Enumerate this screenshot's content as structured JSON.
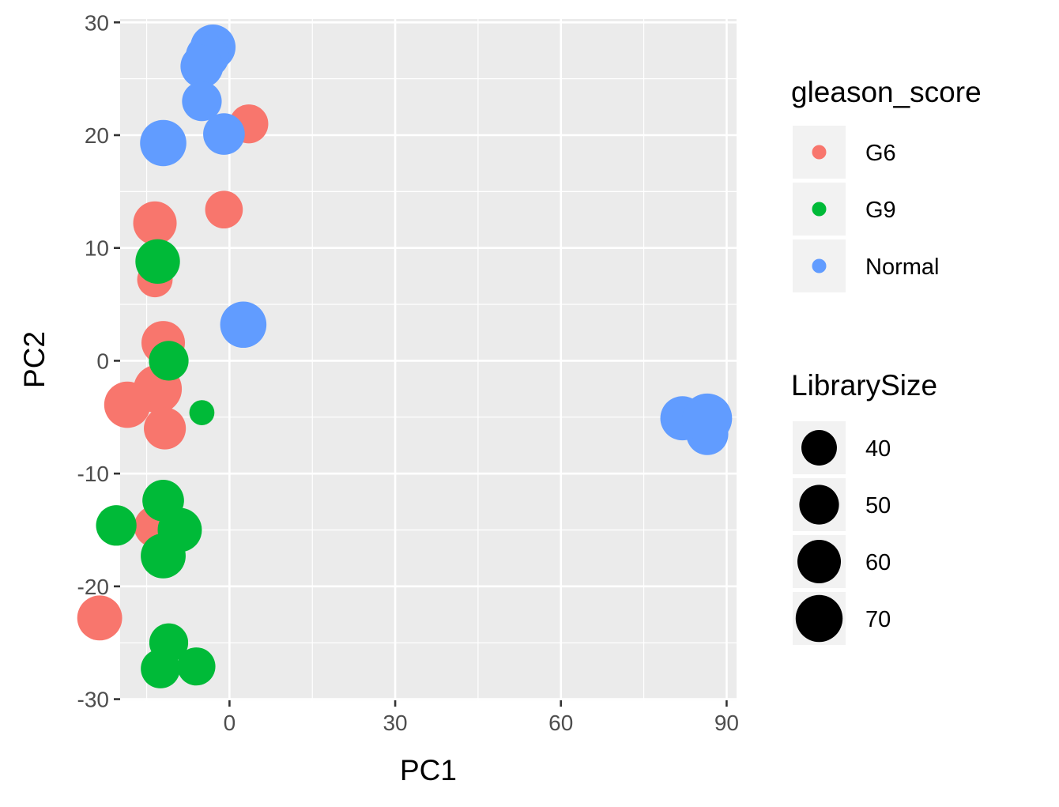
{
  "chart_data": {
    "type": "scatter",
    "title": "",
    "xlabel": "PC1",
    "ylabel": "PC2",
    "xlim": [
      -19.8,
      91.8
    ],
    "ylim": [
      -30.1,
      30.3
    ],
    "xticks": [
      0,
      30,
      60,
      90
    ],
    "yticks": [
      -30,
      -20,
      -10,
      0,
      10,
      20,
      30
    ],
    "grid": true,
    "background": "#ebebeb",
    "color_legend": {
      "title": "gleason_score",
      "entries": [
        {
          "label": "G6",
          "color": "#f8766d"
        },
        {
          "label": "G9",
          "color": "#00ba38"
        },
        {
          "label": "Normal",
          "color": "#619cff"
        }
      ]
    },
    "size_legend": {
      "title": "LibrarySize",
      "entries": [
        {
          "label": "40",
          "value": 40
        },
        {
          "label": "50",
          "value": 50
        },
        {
          "label": "60",
          "value": 60
        },
        {
          "label": "70",
          "value": 70
        }
      ]
    },
    "series": [
      {
        "name": "G6",
        "color": "#f8766d",
        "points": [
          {
            "x": -13.5,
            "y": 12.2,
            "size": 60
          },
          {
            "x": -13.5,
            "y": 7.2,
            "size": 40
          },
          {
            "x": 3.5,
            "y": 21.0,
            "size": 48
          },
          {
            "x": -1.0,
            "y": 13.4,
            "size": 45
          },
          {
            "x": -12.0,
            "y": 1.6,
            "size": 60
          },
          {
            "x": -13.0,
            "y": -2.5,
            "size": 74
          },
          {
            "x": -18.5,
            "y": -3.9,
            "size": 68
          },
          {
            "x": -11.7,
            "y": -6.0,
            "size": 56
          },
          {
            "x": -13.5,
            "y": -14.7,
            "size": 55
          },
          {
            "x": -23.5,
            "y": -22.8,
            "size": 64
          }
        ]
      },
      {
        "name": "G9",
        "color": "#00ba38",
        "points": [
          {
            "x": -13.0,
            "y": 8.8,
            "size": 63
          },
          {
            "x": -11.0,
            "y": 0.0,
            "size": 50
          },
          {
            "x": -5.0,
            "y": -4.6,
            "size": 20
          },
          {
            "x": -12.0,
            "y": -12.4,
            "size": 55
          },
          {
            "x": -20.5,
            "y": -14.6,
            "size": 52
          },
          {
            "x": -9.0,
            "y": -15.0,
            "size": 62
          },
          {
            "x": -12.0,
            "y": -17.3,
            "size": 64
          },
          {
            "x": -11.0,
            "y": -25.0,
            "size": 48
          },
          {
            "x": -12.5,
            "y": -27.3,
            "size": 49
          },
          {
            "x": -6.0,
            "y": -27.1,
            "size": 46
          }
        ]
      },
      {
        "name": "Normal",
        "color": "#619cff",
        "points": [
          {
            "x": -3.0,
            "y": 27.8,
            "size": 65
          },
          {
            "x": -4.0,
            "y": 27.0,
            "size": 60
          },
          {
            "x": -5.0,
            "y": 26.1,
            "size": 58
          },
          {
            "x": -5.0,
            "y": 23.0,
            "size": 50
          },
          {
            "x": -12.0,
            "y": 19.3,
            "size": 68
          },
          {
            "x": -1.0,
            "y": 20.1,
            "size": 55
          },
          {
            "x": 2.5,
            "y": 3.2,
            "size": 68
          },
          {
            "x": 82.0,
            "y": -5.1,
            "size": 62
          },
          {
            "x": 86.5,
            "y": -6.5,
            "size": 56
          },
          {
            "x": 86.5,
            "y": -5.1,
            "size": 78
          }
        ]
      }
    ]
  }
}
